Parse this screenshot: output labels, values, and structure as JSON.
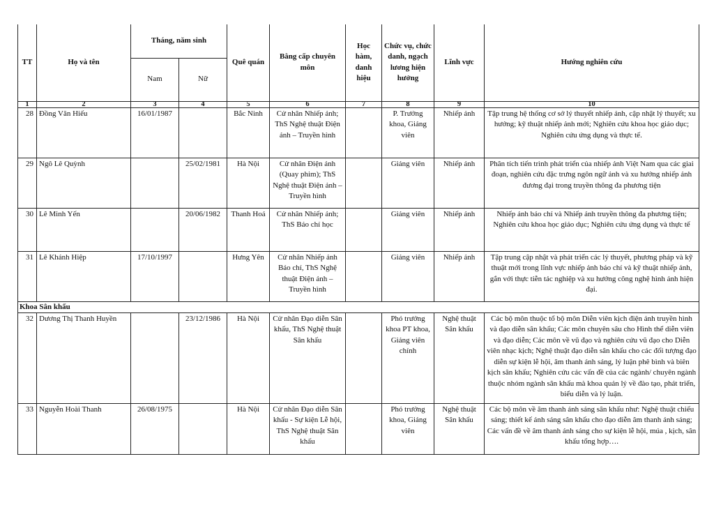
{
  "header": {
    "tt": "TT",
    "name": "Họ và tên",
    "birth": "Tháng, năm sinh",
    "male": "Nam",
    "female": "Nữ",
    "hometown": "Quê quán",
    "degree": "Bằng cấp chuyên môn",
    "academic_title": "Học hàm, danh hiệu",
    "position": "Chức vụ, chức danh, ngạch lương hiện hưởng",
    "field": "Lĩnh vực",
    "research": "Hướng nghiên cứu",
    "numbers": [
      "1",
      "2",
      "3",
      "4",
      "5",
      "6",
      "7",
      "8",
      "9",
      "10"
    ]
  },
  "rows": [
    {
      "tt": "28",
      "name": "Đồng Văn Hiếu",
      "male": "16/01/1987",
      "female": "",
      "hometown": "Bắc Ninh",
      "degree": "Cử nhân Nhiếp ảnh; ThS Nghệ thuật Điện ảnh – Truyền hình",
      "title": "",
      "position": "P. Trưởng khoa, Giảng viên",
      "field": "Nhiếp ảnh",
      "research": "Tập trung hệ thống cơ sở lý thuyết nhiếp ảnh, cập nhật lý thuyết; xu hướng; kỹ thuật nhiếp ảnh mới; Nghiên cứu khoa học giáo dục; Nghiên cứu ứng dụng và thực tế."
    },
    {
      "tt": "29",
      "name": "Ngô Lê Quỳnh",
      "male": "",
      "female": "25/02/1981",
      "hometown": "Hà Nội",
      "degree": "Cử nhân Điện ảnh (Quay phim); ThS Nghệ thuật Điện ảnh – Truyền hình",
      "title": "",
      "position": "Giảng viên",
      "field": "Nhiếp ảnh",
      "research": "Phân tích tiến trình phát triển của nhiếp ảnh Việt Nam qua các giai đoạn, nghiên cứu đặc trưng ngôn ngữ ảnh và xu hướng nhiếp ảnh đương đại trong truyền thông đa phương tiện"
    },
    {
      "tt": "30",
      "name": "Lê Minh Yến",
      "male": "",
      "female": "20/06/1982",
      "hometown": "Thanh Hoá",
      "degree": "Cử nhân Nhiếp ảnh; ThS Báo chí học",
      "title": "",
      "position": "Giảng viên",
      "field": "Nhiếp ảnh",
      "research": "Nhiếp ảnh báo chí và Nhiếp ảnh truyền thông đa phương tiện; Nghiên cứu khoa học giáo dục; Nghiên cứu ứng dụng và thực tế"
    },
    {
      "tt": "31",
      "name": "Lê Khánh Hiệp",
      "male": "17/10/1997",
      "female": "",
      "hometown": "Hưng Yên",
      "degree": "Cử nhân Nhiếp ảnh Báo chí, ThS Nghệ thuật Điện ảnh – Truyền hình",
      "title": "",
      "position": "Giảng viên",
      "field": "Nhiếp ảnh",
      "research": "Tập trung cập nhật và phát triển các lý thuyết, phương pháp và kỹ thuật mới trong lĩnh vực nhiếp ảnh báo chí và kỹ thuật nhiếp ảnh, gắn với thực tiễn tác nghiệp và xu hướng công nghệ hình ảnh hiện đại."
    },
    {
      "section": "Khoa Sân khấu"
    },
    {
      "tt": "32",
      "name": "Dương Thị Thanh Huyền",
      "male": "",
      "female": "23/12/1986",
      "hometown": "Hà Nội",
      "degree": "Cử nhân Đạo diễn Sân khấu, ThS Nghệ thuật Sân khấu",
      "title": "",
      "position": "Phó trưởng khoa PT khoa, Giảng viên chính",
      "field": "Nghệ thuật Sân khấu",
      "research": "Các bộ môn thuộc tổ bộ môn Diễn viên kịch điện ảnh truyền hình và đạo diễn sân khấu; Các môn chuyên sâu cho Hình thể diễn viên và đạo diễn; Các môn về vũ đạo và nghiên cứu vũ đạo cho Diễn viên nhạc kịch; Nghệ thuật đạo diễn sân khấu cho các đối tượng đạo diễn sự kiện lễ hội, âm thanh ánh sáng, lý luận phê bình và biên kịch sân khấu; Nghiên cứu các vấn đề của các ngành/ chuyên ngành thuộc nhóm ngành sân khấu mà khoa quản lý về đào tạo, phát triển, biểu diễn và lý luận."
    },
    {
      "tt": "33",
      "name": "Nguyễn Hoài Thanh",
      "male": "26/08/1975",
      "female": "",
      "hometown": "Hà Nội",
      "degree": "Cử nhân Đạo diễn Sân khấu - Sự kiện Lễ hội, ThS Nghệ thuật Sân khấu",
      "title": "",
      "position": "Phó trưởng khoa, Giảng viên",
      "field": "Nghệ thuật Sân khấu",
      "research": "Các bộ môn về âm thanh ánh sáng sân khấu như: Nghệ thuật chiếu sáng; thiết kế ánh sáng sân khấu cho đạo diễn âm thanh ánh sáng; Các vấn đề về âm thanh ánh sáng cho sự kiện lễ hội, múa , kịch, sân khấu tổng hợp…."
    }
  ]
}
